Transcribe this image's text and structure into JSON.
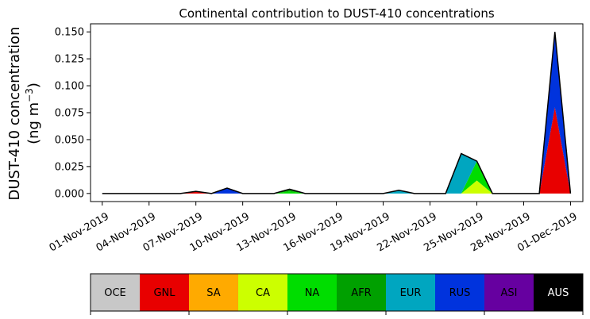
{
  "chart_data": {
    "type": "area",
    "title": "Continental contribution to DUST-410 concentrations",
    "ylabel_line1": "DUST-410 concentration",
    "ylabel_line2": "(ng m",
    "ylabel_unit_exp": "−3",
    "ylabel_close": ")",
    "xlabel": "",
    "x_start": "2019-11-01",
    "x_end": "2019-12-01",
    "xlim": [
      "2019-10-31T06:00",
      "2019-12-01T19:00"
    ],
    "ylim": [
      -0.0075,
      0.1575
    ],
    "x_ticks": [
      "01-Nov-2019",
      "04-Nov-2019",
      "07-Nov-2019",
      "10-Nov-2019",
      "13-Nov-2019",
      "16-Nov-2019",
      "19-Nov-2019",
      "22-Nov-2019",
      "25-Nov-2019",
      "28-Nov-2019",
      "01-Dec-2019"
    ],
    "y_ticks": [
      "0.000",
      "0.025",
      "0.050",
      "0.075",
      "0.100",
      "0.125",
      "0.150"
    ],
    "y_tick_values": [
      0,
      0.025,
      0.05,
      0.075,
      0.1,
      0.125,
      0.15
    ],
    "x": [
      "2019-11-01",
      "2019-11-02",
      "2019-11-03",
      "2019-11-04",
      "2019-11-05",
      "2019-11-06",
      "2019-11-07",
      "2019-11-08",
      "2019-11-09",
      "2019-11-10",
      "2019-11-11",
      "2019-11-12",
      "2019-11-13",
      "2019-11-14",
      "2019-11-15",
      "2019-11-16",
      "2019-11-17",
      "2019-11-18",
      "2019-11-19",
      "2019-11-20",
      "2019-11-21",
      "2019-11-22",
      "2019-11-23",
      "2019-11-24",
      "2019-11-25",
      "2019-11-26",
      "2019-11-27",
      "2019-11-28",
      "2019-11-29",
      "2019-11-30",
      "2019-12-01"
    ],
    "series": [
      {
        "name": "OCE",
        "color": "#c8c8c8",
        "values": [
          0,
          0,
          0,
          0,
          0,
          0,
          0,
          0,
          0,
          0,
          0,
          0,
          0,
          0,
          0,
          0,
          0,
          0,
          0,
          0,
          0,
          0,
          0,
          0,
          0,
          0,
          0,
          0,
          0,
          0,
          0
        ]
      },
      {
        "name": "GNL",
        "color": "#e80000",
        "values": [
          0,
          0,
          0,
          0,
          0,
          0,
          0.002,
          0,
          0,
          0,
          0,
          0,
          0,
          0,
          0,
          0,
          0,
          0,
          0,
          0,
          0,
          0,
          0,
          0,
          0,
          0,
          0,
          0,
          0,
          0.08,
          0
        ]
      },
      {
        "name": "SA",
        "color": "#ffaa00",
        "values": [
          0,
          0,
          0,
          0,
          0,
          0,
          0,
          0,
          0,
          0,
          0,
          0,
          0,
          0,
          0,
          0,
          0,
          0,
          0,
          0,
          0,
          0,
          0,
          0,
          0,
          0,
          0,
          0,
          0,
          0,
          0
        ]
      },
      {
        "name": "CA",
        "color": "#ccff00",
        "values": [
          0,
          0,
          0,
          0,
          0,
          0,
          0,
          0,
          0,
          0,
          0,
          0,
          0,
          0,
          0,
          0,
          0,
          0,
          0,
          0,
          0,
          0,
          0,
          0,
          0.012,
          0,
          0,
          0,
          0,
          0,
          0
        ]
      },
      {
        "name": "NA",
        "color": "#00dd00",
        "values": [
          0,
          0,
          0,
          0,
          0,
          0,
          0,
          0,
          0,
          0,
          0,
          0,
          0.002,
          0,
          0,
          0,
          0,
          0,
          0,
          0,
          0,
          0,
          0,
          0,
          0.018,
          0,
          0,
          0,
          0,
          0,
          0
        ]
      },
      {
        "name": "AFR",
        "color": "#00a000",
        "values": [
          0,
          0,
          0,
          0,
          0,
          0,
          0,
          0,
          0,
          0,
          0,
          0,
          0.002,
          0,
          0,
          0,
          0,
          0,
          0,
          0,
          0,
          0,
          0,
          0,
          0,
          0,
          0,
          0,
          0,
          0,
          0
        ]
      },
      {
        "name": "EUR",
        "color": "#00a6c0",
        "values": [
          0,
          0,
          0,
          0,
          0,
          0,
          0,
          0,
          0,
          0,
          0,
          0,
          0,
          0,
          0,
          0,
          0,
          0,
          0,
          0.003,
          0,
          0,
          0,
          0.037,
          0,
          0,
          0,
          0,
          0,
          0,
          0
        ]
      },
      {
        "name": "RUS",
        "color": "#0033dd",
        "values": [
          0,
          0,
          0,
          0,
          0,
          0,
          0,
          0,
          0.005,
          0,
          0,
          0,
          0,
          0,
          0,
          0,
          0,
          0,
          0,
          0,
          0,
          0,
          0,
          0,
          0,
          0,
          0,
          0,
          0,
          0.07,
          0
        ]
      },
      {
        "name": "ASI",
        "color": "#6600a0",
        "values": [
          0,
          0,
          0,
          0,
          0,
          0,
          0,
          0,
          0,
          0,
          0,
          0,
          0,
          0,
          0,
          0,
          0,
          0,
          0,
          0,
          0,
          0,
          0,
          0,
          0,
          0,
          0,
          0,
          0,
          0,
          0
        ]
      },
      {
        "name": "AUS",
        "color": "#000000",
        "values": [
          0,
          0,
          0,
          0,
          0,
          0,
          0,
          0,
          0,
          0,
          0,
          0,
          0,
          0,
          0,
          0,
          0,
          0,
          0,
          0,
          0,
          0,
          0,
          0,
          0,
          0,
          0,
          0,
          0,
          0,
          0
        ]
      }
    ],
    "outline_color": "#000000",
    "grid": false,
    "legend": {
      "placement": "bottom",
      "items": [
        {
          "name": "OCE",
          "color": "#c8c8c8",
          "text_color": "#000000"
        },
        {
          "name": "GNL",
          "color": "#e80000",
          "text_color": "#000000"
        },
        {
          "name": "SA",
          "color": "#ffaa00",
          "text_color": "#000000"
        },
        {
          "name": "CA",
          "color": "#ccff00",
          "text_color": "#000000"
        },
        {
          "name": "NA",
          "color": "#00dd00",
          "text_color": "#000000"
        },
        {
          "name": "AFR",
          "color": "#00a000",
          "text_color": "#000000"
        },
        {
          "name": "EUR",
          "color": "#00a6c0",
          "text_color": "#000000"
        },
        {
          "name": "RUS",
          "color": "#0033dd",
          "text_color": "#000000"
        },
        {
          "name": "ASI",
          "color": "#6600a0",
          "text_color": "#000000"
        },
        {
          "name": "AUS",
          "color": "#000000",
          "text_color": "#ffffff"
        }
      ]
    }
  }
}
